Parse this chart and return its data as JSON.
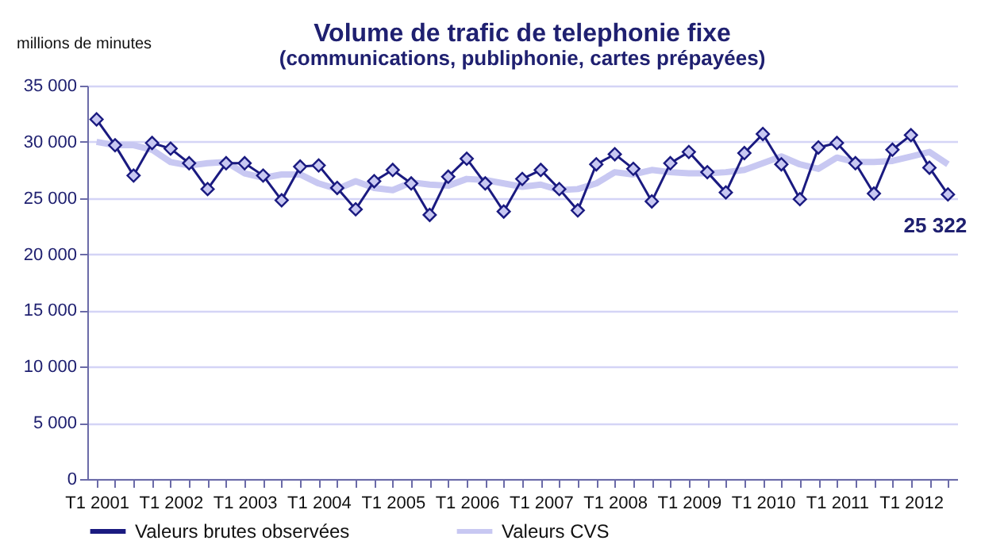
{
  "chart_data": {
    "type": "line",
    "title": "Volume de trafic de telephonie fixe",
    "subtitle": "(communications, publiphonie, cartes prépayées)",
    "ylabel": "millions de minutes",
    "categories": [
      "T1 2001",
      null,
      null,
      null,
      "T1 2002",
      null,
      null,
      null,
      "T1 2003",
      null,
      null,
      null,
      "T1 2004",
      null,
      null,
      null,
      "T1 2005",
      null,
      null,
      null,
      "T1 2006",
      null,
      null,
      null,
      "T1 2007",
      null,
      null,
      null,
      "T1 2008",
      null,
      null,
      null,
      "T1 2009",
      null,
      null,
      null,
      "T1 2010",
      null,
      null,
      null,
      "T1 2011",
      null,
      null,
      null,
      "T1 2012",
      null,
      null
    ],
    "series": [
      {
        "name": "Valeurs brutes observées",
        "color": "#1a1a80",
        "marker": "diamond",
        "values": [
          32000,
          29700,
          27000,
          29900,
          29400,
          28100,
          25800,
          28100,
          28100,
          27000,
          24800,
          27800,
          27900,
          25900,
          24000,
          26500,
          27500,
          26300,
          23500,
          26900,
          28500,
          26300,
          23800,
          26700,
          27500,
          25800,
          23900,
          28000,
          28900,
          27600,
          24700,
          28100,
          29100,
          27300,
          25500,
          29000,
          30700,
          28000,
          24900,
          29500,
          29900,
          28100,
          25400,
          29300,
          30600,
          27700,
          25322
        ],
        "value_labels": [
          null,
          null,
          null,
          null,
          null,
          null,
          null,
          null,
          null,
          null,
          null,
          null,
          null,
          null,
          null,
          null,
          null,
          null,
          null,
          null,
          null,
          null,
          null,
          null,
          null,
          null,
          null,
          null,
          null,
          null,
          null,
          null,
          null,
          null,
          null,
          null,
          null,
          null,
          null,
          null,
          null,
          null,
          null,
          null,
          null,
          null,
          "25 322"
        ]
      },
      {
        "name": "Valeurs CVS",
        "color": "#c8c8f2",
        "marker": "none",
        "values": [
          30000,
          29700,
          29700,
          29300,
          28200,
          27900,
          28100,
          28200,
          27200,
          26800,
          27100,
          27100,
          26300,
          25800,
          26500,
          25900,
          25700,
          26400,
          26200,
          26100,
          26700,
          26600,
          26300,
          26000,
          26200,
          25700,
          25800,
          26300,
          27300,
          27100,
          27500,
          27300,
          27200,
          27200,
          27300,
          27500,
          28100,
          28700,
          28000,
          27600,
          28600,
          28200,
          28200,
          28300,
          28700,
          29100,
          28000
        ]
      }
    ],
    "ylim": [
      0,
      35000
    ],
    "yticks": [
      {
        "value": 0,
        "label": "0"
      },
      {
        "value": 5000,
        "label": "5 000"
      },
      {
        "value": 10000,
        "label": "10 000"
      },
      {
        "value": 15000,
        "label": "15 000"
      },
      {
        "value": 20000,
        "label": "20 000"
      },
      {
        "value": 25000,
        "label": "25 000"
      },
      {
        "value": 30000,
        "label": "30 000"
      },
      {
        "value": 35000,
        "label": "35 000"
      }
    ],
    "grid": "y",
    "legend": "bottom"
  }
}
